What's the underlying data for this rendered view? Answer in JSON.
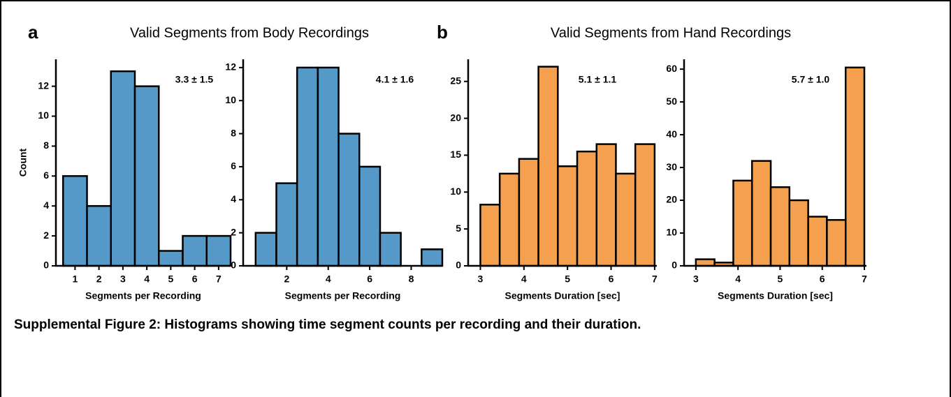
{
  "figure": {
    "panels": [
      {
        "letter": "a",
        "title": "Valid Segments from Body Recordings"
      },
      {
        "letter": "b",
        "title": "Valid Segments from Hand Recordings"
      }
    ],
    "caption": "Supplemental Figure 2: Histograms showing time segment counts per recording and their duration."
  },
  "chart_data": [
    {
      "type": "histogram",
      "annotation": "3.3 ± 1.5",
      "x_label": "Segments per Recording",
      "y_label": "Count",
      "color": "#5599c8",
      "bins": [
        0.5,
        1.5,
        2.5,
        3.5,
        4.5,
        5.5,
        6.5,
        7.5
      ],
      "values": [
        6,
        4,
        13,
        12,
        1,
        2,
        2
      ],
      "xlim": [
        0.2,
        7.5
      ],
      "xticks": [
        1,
        2,
        3,
        4,
        5,
        6,
        7
      ],
      "ylim": [
        0,
        13.8
      ],
      "yticks": [
        0,
        2,
        4,
        6,
        8,
        10,
        12
      ]
    },
    {
      "type": "histogram",
      "annotation": "4.1 ± 1.6",
      "x_label": "Segments per Recording",
      "color": "#5599c8",
      "bins": [
        0.5,
        1.5,
        2.5,
        3.5,
        4.5,
        5.5,
        6.5,
        7.5,
        8.5,
        9.5
      ],
      "values": [
        2,
        5,
        12,
        12,
        8,
        6,
        2,
        0,
        1
      ],
      "xlim": [
        -0.1,
        9.5
      ],
      "xticks": [
        2,
        4,
        6,
        8
      ],
      "ylim": [
        0,
        12.5
      ],
      "yticks": [
        0,
        2,
        4,
        6,
        8,
        10,
        12
      ]
    },
    {
      "type": "histogram",
      "annotation": "5.1 ± 1.1",
      "x_label": "Segments Duration [sec]",
      "color": "#f5a04f",
      "bins": [
        3,
        3.444,
        3.889,
        4.333,
        4.778,
        5.222,
        5.667,
        6.111,
        6.556,
        7
      ],
      "values": [
        8.3,
        12.5,
        14.5,
        27,
        13.5,
        15.5,
        16.5,
        12.5,
        16.5
      ],
      "xlim": [
        2.72,
        7.05
      ],
      "xticks": [
        3,
        4,
        5,
        6,
        7
      ],
      "ylim": [
        0,
        28
      ],
      "yticks": [
        0,
        5,
        10,
        15,
        20,
        25
      ]
    },
    {
      "type": "histogram",
      "annotation": "5.7 ± 1.0",
      "x_label": "Segments Duration [sec]",
      "color": "#f5a04f",
      "bins": [
        3,
        3.444,
        3.889,
        4.333,
        4.778,
        5.222,
        5.667,
        6.111,
        6.556,
        7
      ],
      "values": [
        2,
        1,
        26,
        32,
        24,
        20,
        15,
        14,
        60.5
      ],
      "xlim": [
        2.72,
        7.05
      ],
      "xticks": [
        3,
        4,
        5,
        6,
        7
      ],
      "ylim": [
        0,
        63
      ],
      "yticks": [
        0,
        10,
        20,
        30,
        40,
        50,
        60
      ]
    }
  ]
}
